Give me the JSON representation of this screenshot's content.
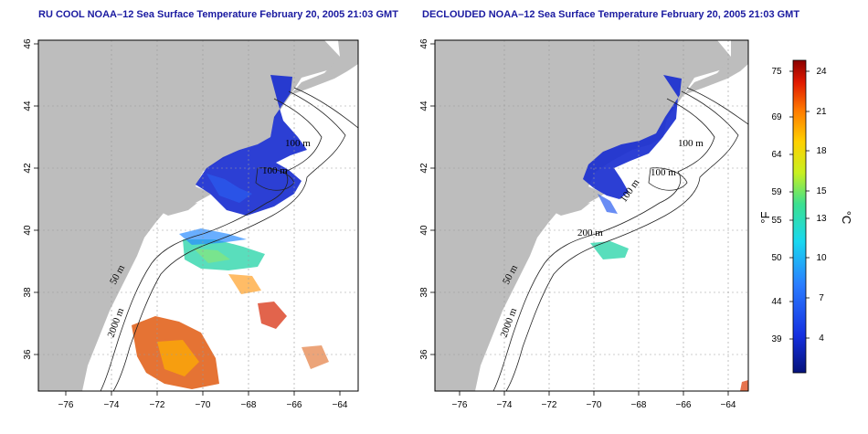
{
  "panels": [
    {
      "title": "RU COOL NOAA–12 Sea Surface Temperature February 20, 2005 21:03 GMT",
      "contour_labels": [
        "100 m",
        "100 m",
        "50 m",
        "2000 m"
      ]
    },
    {
      "title": "DECLOUDED NOAA–12 Sea Surface Temperature February 20, 2005 21:03 GMT",
      "contour_labels": [
        "100 m",
        "100 m",
        "100 m",
        "200 m",
        "50 m",
        "2000 m"
      ]
    }
  ],
  "axes": {
    "x_ticks": [
      "−76",
      "−74",
      "−72",
      "−70",
      "−68",
      "−66",
      "−64"
    ],
    "y_ticks": [
      "36",
      "38",
      "40",
      "42",
      "44",
      "46"
    ]
  },
  "colorbar": {
    "fahrenheit_label": "°F",
    "celsius_label": "°C",
    "fahrenheit_ticks": [
      "75",
      "69",
      "64",
      "59",
      "55",
      "50",
      "44",
      "39"
    ],
    "celsius_ticks": [
      "24",
      "21",
      "18",
      "15",
      "13",
      "10",
      "7",
      "4"
    ]
  },
  "colors": {
    "land": "#bdbdbd",
    "cold": "#1a2fd0",
    "warm": "#d43a10"
  }
}
